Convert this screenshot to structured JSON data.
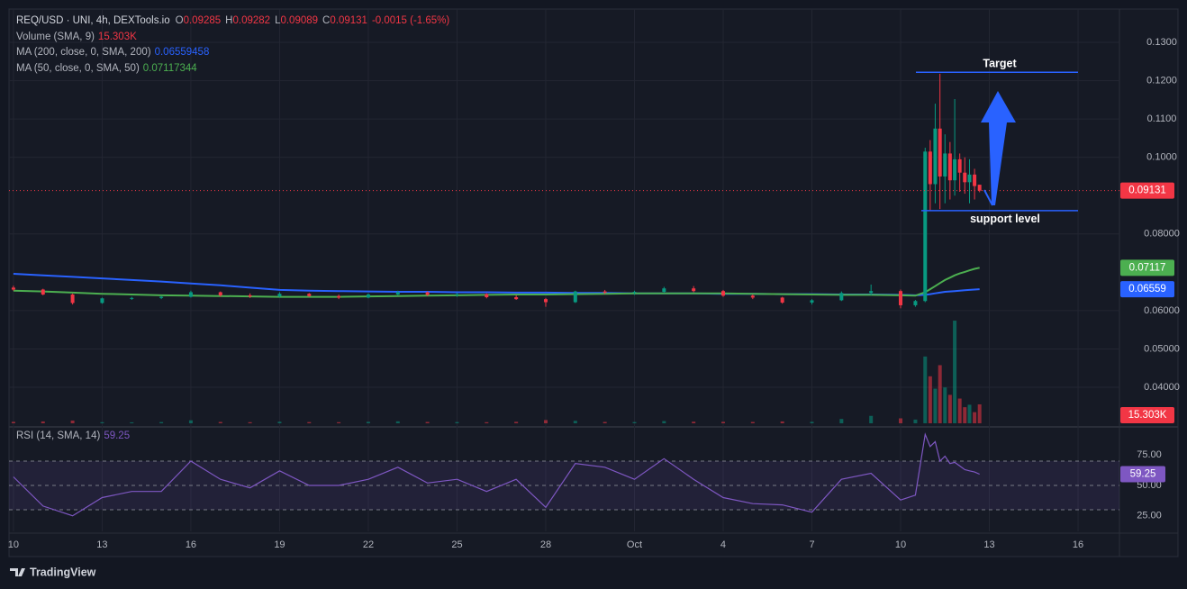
{
  "chart_data": {
    "type": "candlestick",
    "legend": {
      "symbol": "REQ/USD · UNI, 4h, DEXTools.io",
      "ohlc_keys": [
        "O",
        "H",
        "L",
        "C"
      ],
      "change": "-0.0015 (-1.65%)"
    },
    "x": [
      0,
      1,
      2,
      3,
      4,
      5,
      6,
      7,
      8,
      9,
      10,
      11,
      12,
      13,
      14,
      15,
      16,
      17,
      18,
      19,
      20,
      21,
      22,
      23,
      24,
      25,
      26,
      27,
      28,
      29,
      30,
      30.5,
      30.83,
      31,
      31.17,
      31.33,
      31.5,
      31.67,
      31.83,
      32,
      32.17,
      32.33,
      32.5,
      32.67
    ],
    "xlim": [
      -0.15,
      37.4
    ],
    "xticks": [
      {
        "value": 0,
        "label": "10"
      },
      {
        "value": 3,
        "label": "13"
      },
      {
        "value": 6,
        "label": "16"
      },
      {
        "value": 9,
        "label": "19"
      },
      {
        "value": 12,
        "label": "22"
      },
      {
        "value": 15,
        "label": "25"
      },
      {
        "value": 18,
        "label": "28"
      },
      {
        "value": 21,
        "label": "Oct"
      },
      {
        "value": 24,
        "label": "4"
      },
      {
        "value": 27,
        "label": "7"
      },
      {
        "value": 30,
        "label": "10"
      },
      {
        "value": 33,
        "label": "13"
      },
      {
        "value": 36,
        "label": "16"
      }
    ],
    "ylim": [
      0.0306,
      0.1387
    ],
    "yticks": [
      {
        "value": 0.13,
        "label": "0.1300"
      },
      {
        "value": 0.12,
        "label": "0.1200"
      },
      {
        "value": 0.11,
        "label": "0.1100"
      },
      {
        "value": 0.1,
        "label": "0.1000"
      },
      {
        "value": 0.08,
        "label": "0.08000"
      },
      {
        "value": 0.06,
        "label": "0.06000"
      },
      {
        "value": 0.05,
        "label": "0.05000"
      },
      {
        "value": 0.04,
        "label": "0.04000"
      }
    ],
    "grid": true,
    "up_color": "#089981",
    "down_color": "#f23645",
    "open": [
      0.066,
      0.0655,
      0.0642,
      0.062,
      0.0632,
      0.0633,
      0.0636,
      0.0648,
      0.064,
      0.0637,
      0.0644,
      0.0638,
      0.0634,
      0.0642,
      0.0648,
      0.0641,
      0.0643,
      0.0635,
      0.063,
      0.0622,
      0.065,
      0.0647,
      0.0649,
      0.0658,
      0.0651,
      0.0639,
      0.0634,
      0.0621,
      0.0627,
      0.0646,
      0.0651,
      0.0614,
      0.0625,
      0.1015,
      0.093,
      0.1075,
      0.095,
      0.101,
      0.094,
      0.0995,
      0.096,
      0.0935,
      0.0955,
      0.09285
    ],
    "high": [
      0.0665,
      0.0657,
      0.0644,
      0.0634,
      0.0636,
      0.0638,
      0.0652,
      0.065,
      0.0645,
      0.0648,
      0.0646,
      0.0642,
      0.0645,
      0.0652,
      0.065,
      0.0646,
      0.0645,
      0.064,
      0.0633,
      0.0652,
      0.0654,
      0.0652,
      0.0662,
      0.0664,
      0.0654,
      0.0642,
      0.0636,
      0.063,
      0.065,
      0.0668,
      0.0655,
      0.0628,
      0.1025,
      0.1045,
      0.114,
      0.1218,
      0.106,
      0.104,
      0.1152,
      0.101,
      0.1,
      0.0995,
      0.097,
      0.09282
    ],
    "low": [
      0.0652,
      0.064,
      0.0616,
      0.0618,
      0.0628,
      0.063,
      0.0634,
      0.0636,
      0.0633,
      0.0635,
      0.0636,
      0.063,
      0.0632,
      0.064,
      0.0638,
      0.0636,
      0.0632,
      0.0628,
      0.061,
      0.062,
      0.0643,
      0.0641,
      0.0646,
      0.0648,
      0.0636,
      0.063,
      0.0618,
      0.0616,
      0.0625,
      0.064,
      0.0606,
      0.061,
      0.0622,
      0.086,
      0.088,
      0.0865,
      0.088,
      0.089,
      0.09,
      0.091,
      0.0905,
      0.088,
      0.089,
      0.09089
    ],
    "close": [
      0.0655,
      0.0642,
      0.062,
      0.0632,
      0.0633,
      0.0636,
      0.0648,
      0.064,
      0.0637,
      0.0644,
      0.0638,
      0.0634,
      0.0642,
      0.0648,
      0.0641,
      0.0643,
      0.0635,
      0.063,
      0.0622,
      0.065,
      0.0647,
      0.0649,
      0.0658,
      0.0651,
      0.0639,
      0.0634,
      0.0621,
      0.0627,
      0.0646,
      0.0651,
      0.0614,
      0.0625,
      0.1015,
      0.093,
      0.1075,
      0.095,
      0.101,
      0.094,
      0.0995,
      0.096,
      0.0935,
      0.0955,
      0.0925,
      0.09131
    ],
    "volume": {
      "name": "Volume (SMA, 9)",
      "last_label": "15.303K",
      "ylim": [
        0,
        335000
      ],
      "values": [
        1200,
        1500,
        2200,
        900,
        800,
        1000,
        2400,
        1100,
        900,
        1300,
        1000,
        900,
        1200,
        1600,
        1100,
        1000,
        900,
        1200,
        2600,
        2000,
        1100,
        1000,
        1800,
        1300,
        1200,
        1100,
        1500,
        1200,
        3500,
        6000,
        4000,
        3000,
        54000,
        38000,
        28000,
        47000,
        29000,
        23000,
        83000,
        20000,
        13000,
        15000,
        9000,
        15303
      ]
    },
    "ma": [
      {
        "name": "MA (200, close, 0, SMA, 200)",
        "color": "#2962ff",
        "tag_label": "0.06559",
        "values": [
          0.0696,
          0.0692,
          0.0688,
          0.0684,
          0.068,
          0.0676,
          0.0671,
          0.0666,
          0.066,
          0.0654,
          0.0652,
          0.0651,
          0.065,
          0.0649,
          0.0649,
          0.0648,
          0.0648,
          0.0647,
          0.0647,
          0.0646,
          0.0646,
          0.0645,
          0.0645,
          0.0645,
          0.0644,
          0.0644,
          0.0643,
          0.0643,
          0.0642,
          0.0642,
          0.0641,
          0.064,
          0.0641,
          0.0643,
          0.0645,
          0.0647,
          0.0649,
          0.065,
          0.0651,
          0.0652,
          0.0653,
          0.0654,
          0.0655,
          0.06559458
        ]
      },
      {
        "name": "MA (50, close, 0, SMA, 50)",
        "color": "#4caf50",
        "tag_label": "0.07117",
        "values": [
          0.0652,
          0.065,
          0.0647,
          0.0644,
          0.0642,
          0.064,
          0.0639,
          0.0638,
          0.0637,
          0.0636,
          0.0636,
          0.0636,
          0.0637,
          0.0638,
          0.0639,
          0.064,
          0.0641,
          0.0642,
          0.0642,
          0.0643,
          0.0644,
          0.0645,
          0.0645,
          0.0645,
          0.0645,
          0.0644,
          0.0643,
          0.0642,
          0.0641,
          0.0641,
          0.064,
          0.0639,
          0.0648,
          0.0656,
          0.0664,
          0.0672,
          0.068,
          0.0686,
          0.0692,
          0.0697,
          0.0701,
          0.0705,
          0.0709,
          0.07117344
        ]
      }
    ],
    "annotations": [
      {
        "text": "Target",
        "value": 0.1222
      },
      {
        "text": "support level",
        "value": 0.0861
      }
    ],
    "rsi": {
      "name": "RSI (14, SMA, 14)",
      "color": "#7e57c2",
      "ylim": [
        12.2,
        95.2
      ],
      "yticks": [
        {
          "value": 75,
          "label": "75.00"
        },
        {
          "value": 50,
          "label": "50.00"
        },
        {
          "value": 25,
          "label": "25.00"
        }
      ],
      "levels": [
        30,
        50,
        70
      ],
      "values": [
        57,
        33,
        25,
        40,
        45,
        45,
        70,
        55,
        48,
        62,
        50,
        50,
        55,
        65,
        52,
        55,
        45,
        55,
        32,
        68,
        65,
        55,
        72,
        55,
        40,
        35,
        34,
        28,
        55,
        60,
        38,
        42,
        92,
        82,
        86,
        70,
        74,
        68,
        69,
        66,
        63,
        62,
        61,
        59.25
      ]
    },
    "footer": "TradingView"
  }
}
